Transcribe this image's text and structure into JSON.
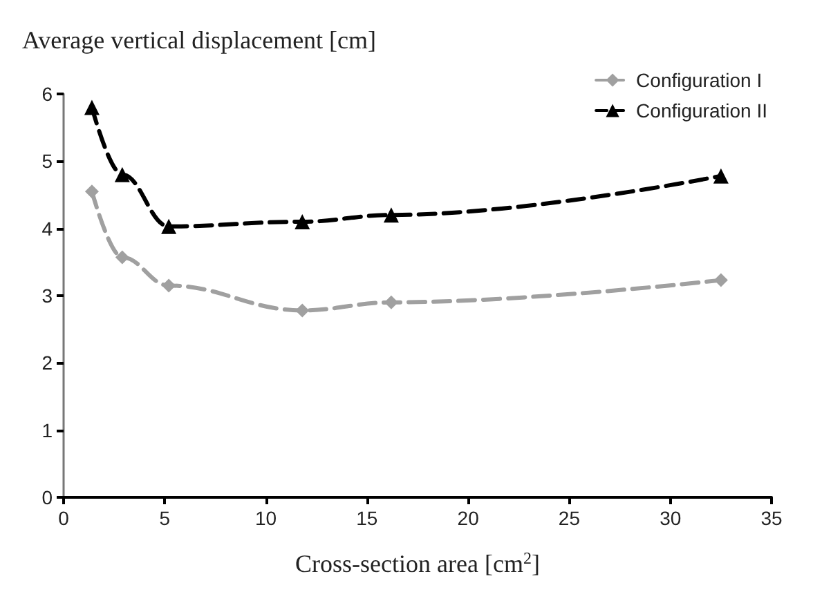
{
  "chart_data": {
    "type": "line",
    "ylabel": "Average vertical displacement [cm]",
    "xlabel": "Cross-section area [cm$^{2}$]",
    "xlim": [
      0,
      35
    ],
    "xticks": [
      0,
      5,
      10,
      15,
      20,
      25,
      30,
      35
    ],
    "ylim": [
      0,
      6
    ],
    "yticks": [
      0,
      1,
      2,
      3,
      4,
      5,
      6
    ],
    "grid": false,
    "legend": "top right",
    "line_style": "dashed",
    "series": [
      {
        "name": "Configuration I",
        "color": "#a0a0a0",
        "marker": "diamond",
        "x": [
          1.4,
          2.9,
          5.2,
          11.8,
          16.2,
          32.5
        ],
        "values": [
          4.55,
          3.57,
          3.15,
          2.78,
          2.9,
          3.23
        ]
      },
      {
        "name": "Configuration II",
        "color": "#000000",
        "marker": "triangle",
        "x": [
          1.4,
          2.9,
          5.2,
          11.8,
          16.2,
          32.5
        ],
        "values": [
          5.8,
          4.8,
          4.03,
          4.1,
          4.2,
          4.78
        ]
      }
    ]
  }
}
